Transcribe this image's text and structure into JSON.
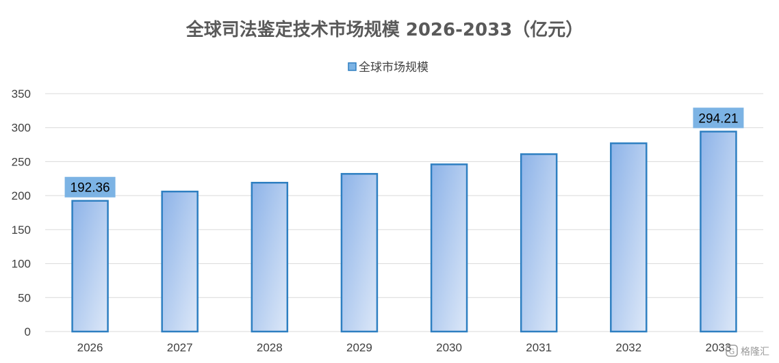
{
  "chart_data": {
    "type": "bar",
    "title": "全球司法鉴定技术市场规模 2026-2033（亿元）",
    "categories": [
      "2026",
      "2027",
      "2028",
      "2029",
      "2030",
      "2031",
      "2032",
      "2033"
    ],
    "series": [
      {
        "name": "全球市场规模",
        "values": [
          192.36,
          206,
          219,
          232,
          246,
          261,
          277,
          294.21
        ]
      }
    ],
    "data_labels": [
      {
        "category": "2026",
        "text": "192.36"
      },
      {
        "category": "2033",
        "text": "294.21"
      }
    ],
    "xlabel": "",
    "ylabel": "",
    "ylim": [
      0,
      350
    ],
    "yticks": [
      "0",
      "50",
      "100",
      "150",
      "200",
      "250",
      "300",
      "350"
    ],
    "grid": true,
    "legend_position": "top-center",
    "colors": {
      "bar_top": "#8db3e8",
      "bar_bottom": "#dde8f8",
      "bar_border": "#2e7fc1",
      "label_bg": "#7cb3e4",
      "grid": "#d9d9d9",
      "title": "#595959"
    }
  },
  "watermark": {
    "text": "格隆汇"
  }
}
